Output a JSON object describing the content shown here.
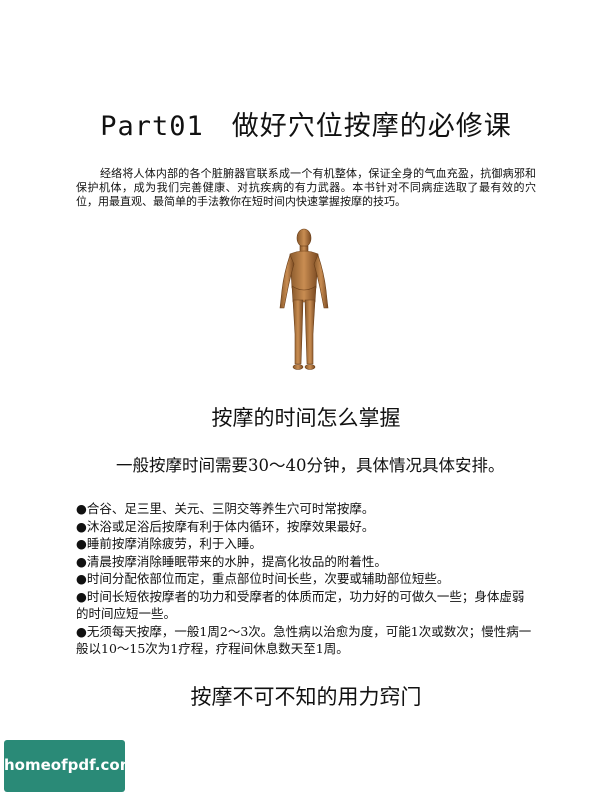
{
  "title": {
    "part": "Part01",
    "text": "做好穴位按摩的必修课"
  },
  "intro": "经络将人体内部的各个脏腑器官联系成一个有机整体，保证全身的气血充盈，抗御病邪和保护机体，成为我们完善健康、对抗疾病的有力武器。本书针对不同病症选取了最有效的穴位，用最直观、最简单的手法教你在短时间内快速掌握按摩的技巧。",
  "section1": {
    "heading": "按摩的时间怎么掌握",
    "lead": "一般按摩时间需要30～40分钟，具体情况具体安排。",
    "items": [
      "●合谷、足三里、关元、三阴交等养生穴可时常按摩。",
      "●沐浴或足浴后按摩有利于体内循环，按摩效果最好。",
      "●睡前按摩消除疲劳，利于入睡。",
      "●清晨按摩消除睡眠带来的水肿，提高化妆品的附着性。",
      "●时间分配依部位而定，重点部位时间长些，次要或辅助部位短些。",
      "●时间长短依按摩者的功力和受摩者的体质而定，功力好的可做久一些；身体虚弱的时间应短一些。",
      "●无须每天按摩，一般1周2～3次。急性病以治愈为度，可能1次或数次；慢性病一般以10～15次为1疗程，疗程间休息数天至1周。"
    ]
  },
  "section2": {
    "heading": "按摩不可不知的用力窍门"
  },
  "badge": {
    "text": "homeofpdf.com"
  }
}
